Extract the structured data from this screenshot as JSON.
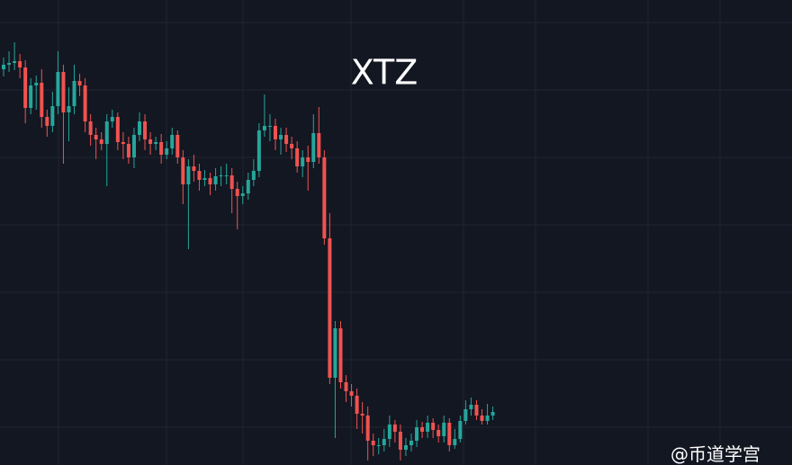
{
  "chart_data": {
    "type": "candlestick",
    "title": "XTZ",
    "watermark": "@币道学宫",
    "up_color": "#26a69a",
    "down_color": "#ef5350",
    "ylim": [
      0,
      517
    ],
    "open": [
      440,
      445,
      447,
      449,
      442,
      397,
      422,
      425,
      387,
      377,
      399,
      437,
      392,
      399,
      427,
      422,
      382,
      367,
      362,
      357,
      382,
      387,
      359,
      357,
      342,
      367,
      382,
      362,
      357,
      359,
      345,
      352,
      367,
      342,
      312,
      332,
      327,
      317,
      319,
      312,
      321,
      322,
      322,
      307,
      299,
      302,
      317,
      327,
      372,
      377,
      377,
      362,
      367,
      357,
      352,
      332,
      342,
      337,
      369,
      342,
      252,
      97,
      152,
      92,
      82,
      77,
      57,
      55,
      27,
      22,
      22,
      29,
      45,
      37,
      17,
      22,
      27,
      42,
      37,
      47,
      39,
      32,
      47,
      22,
      29,
      49,
      62,
      67,
      55,
      49,
      55
    ],
    "high": [
      453,
      460,
      470,
      457,
      450,
      430,
      433,
      440,
      395,
      415,
      460,
      445,
      420,
      445,
      435,
      430,
      390,
      375,
      370,
      390,
      395,
      392,
      370,
      365,
      375,
      392,
      390,
      370,
      365,
      368,
      360,
      375,
      372,
      350,
      340,
      345,
      335,
      328,
      325,
      330,
      332,
      335,
      330,
      315,
      310,
      325,
      340,
      380,
      412,
      390,
      385,
      375,
      375,
      365,
      360,
      350,
      355,
      390,
      398,
      350,
      280,
      160,
      160,
      100,
      90,
      85,
      70,
      65,
      35,
      30,
      40,
      55,
      50,
      45,
      30,
      35,
      50,
      48,
      55,
      52,
      45,
      55,
      52,
      40,
      55,
      72,
      75,
      72,
      62,
      68,
      65
    ],
    "low": [
      432,
      437,
      439,
      430,
      380,
      390,
      395,
      375,
      365,
      370,
      390,
      335,
      360,
      390,
      410,
      370,
      355,
      340,
      350,
      310,
      375,
      350,
      340,
      335,
      330,
      360,
      350,
      345,
      350,
      335,
      340,
      345,
      335,
      290,
      240,
      315,
      305,
      310,
      300,
      305,
      310,
      312,
      280,
      262,
      290,
      295,
      310,
      320,
      365,
      360,
      350,
      345,
      348,
      340,
      325,
      320,
      305,
      330,
      335,
      245,
      90,
      30,
      85,
      70,
      65,
      40,
      35,
      5,
      10,
      12,
      15,
      20,
      25,
      5,
      10,
      15,
      20,
      30,
      30,
      30,
      25,
      25,
      15,
      18,
      25,
      45,
      55,
      50,
      45,
      45,
      50
    ],
    "close": [
      445,
      447,
      449,
      442,
      397,
      422,
      425,
      387,
      377,
      399,
      437,
      392,
      399,
      427,
      422,
      382,
      367,
      362,
      357,
      382,
      387,
      359,
      357,
      342,
      367,
      382,
      362,
      357,
      359,
      345,
      352,
      367,
      342,
      312,
      332,
      327,
      317,
      319,
      312,
      321,
      322,
      322,
      307,
      299,
      302,
      317,
      327,
      372,
      377,
      377,
      362,
      367,
      357,
      352,
      332,
      342,
      337,
      369,
      342,
      252,
      97,
      152,
      92,
      82,
      77,
      57,
      55,
      27,
      22,
      22,
      29,
      45,
      37,
      17,
      22,
      27,
      42,
      37,
      47,
      39,
      32,
      47,
      22,
      29,
      49,
      62,
      67,
      55,
      49,
      55,
      59
    ]
  }
}
